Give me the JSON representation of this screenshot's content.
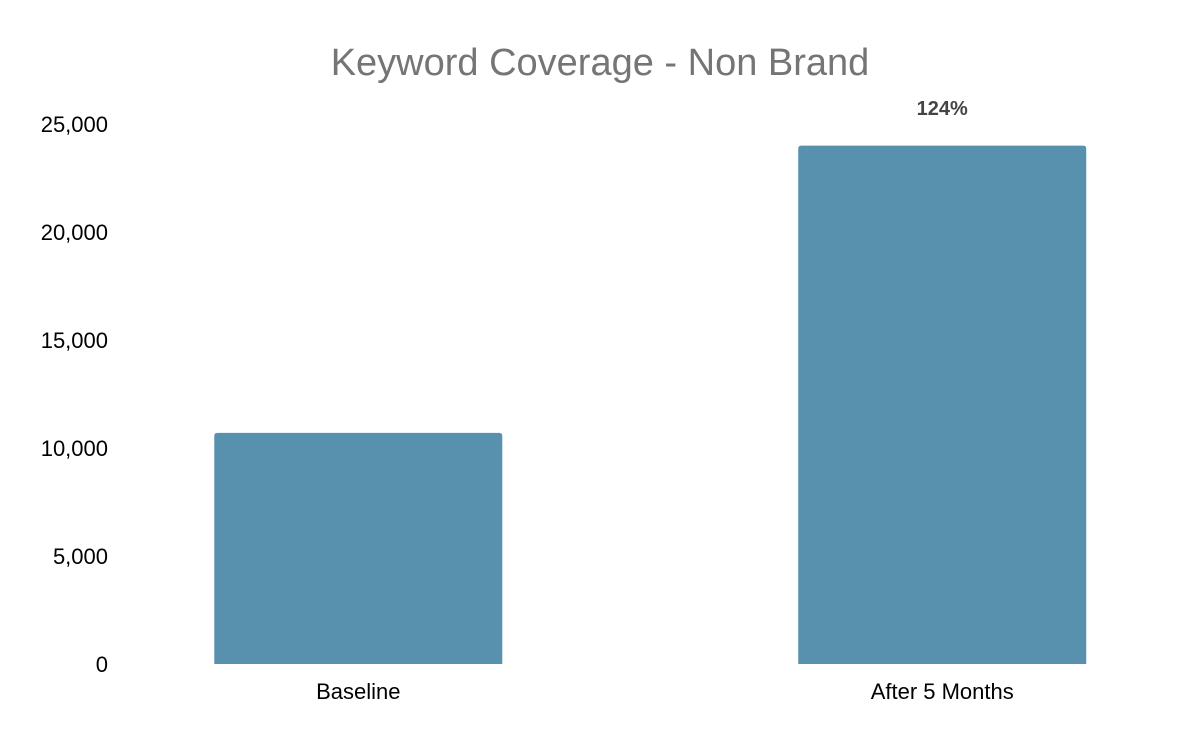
{
  "chart_data": {
    "type": "bar",
    "title": "Keyword Coverage - Non Brand",
    "categories": [
      "Baseline",
      "After 5 Months"
    ],
    "values": [
      10700,
      24000
    ],
    "ylim": [
      0,
      25000
    ],
    "yticks": [
      0,
      5000,
      10000,
      15000,
      20000,
      25000
    ],
    "ytick_labels": [
      "0",
      "5,000",
      "10,000",
      "15,000",
      "20,000",
      "25,000"
    ],
    "grid": false,
    "legend": "none",
    "annotations": [
      {
        "category": "After 5 Months",
        "text": "124%"
      }
    ],
    "colors": {
      "bar": "#5891ae",
      "title": "#757575",
      "annotation": "#444444"
    }
  }
}
